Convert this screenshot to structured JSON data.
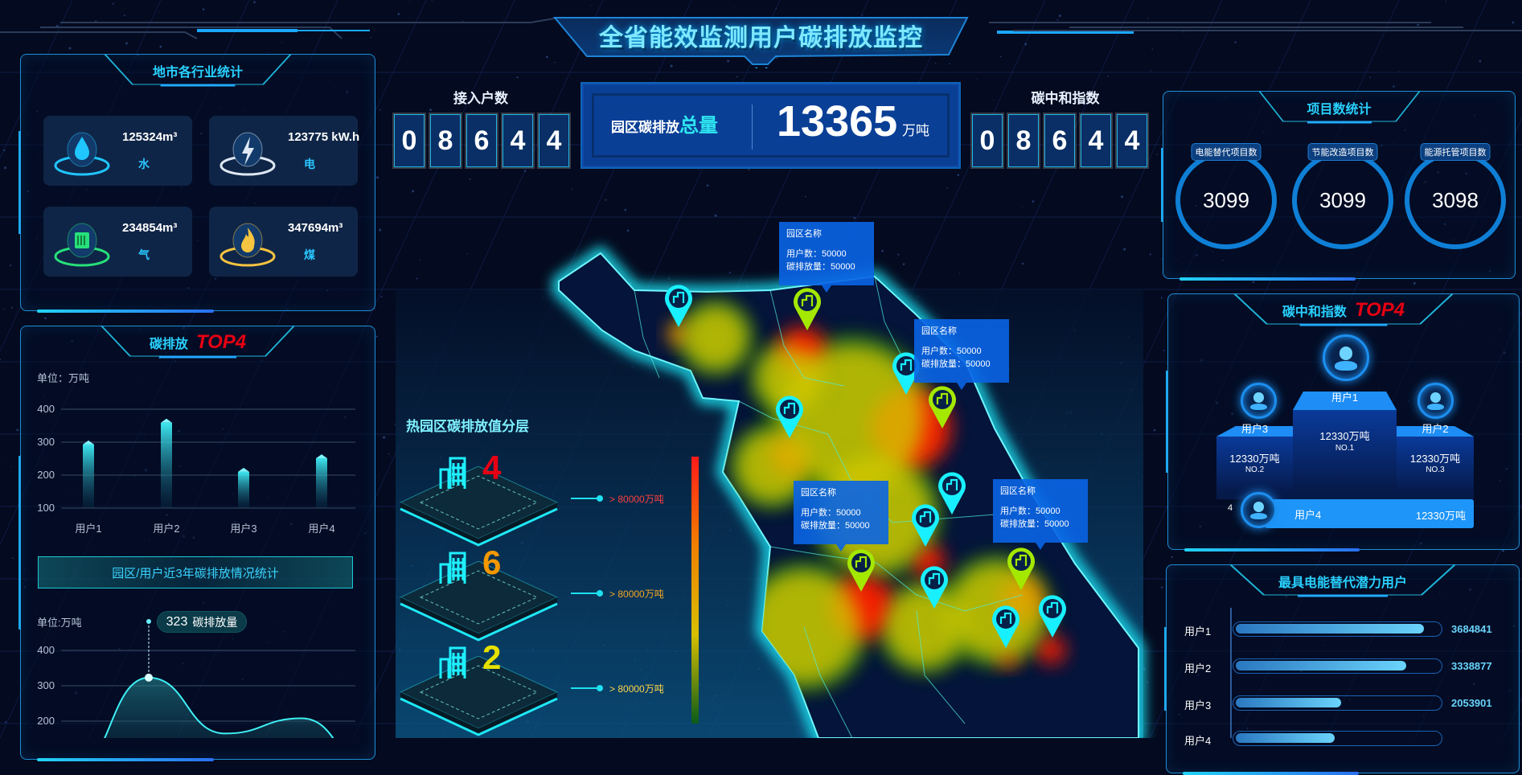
{
  "header": {
    "title": "全省能效监测用户碳排放监控"
  },
  "industry_panel": {
    "title": "地市各行业统计",
    "cards": [
      {
        "value": "125324m³",
        "label": "水",
        "icon": "water-drop-icon",
        "color": "#1fc6ff"
      },
      {
        "value": "123775 kW.h",
        "label": "电",
        "icon": "lightning-icon",
        "color": "#dfe9f5"
      },
      {
        "value": "234854m³",
        "label": "气",
        "icon": "gas-icon",
        "color": "#27e07a"
      },
      {
        "value": "347694m³",
        "label": "煤",
        "icon": "flame-icon",
        "color": "#f5c440"
      }
    ]
  },
  "carbon_top4": {
    "title": "碳排放",
    "badge": "TOP4",
    "unit": "单位：万吨",
    "chart_data": {
      "type": "bar",
      "categories": [
        "用户1",
        "用户2",
        "用户3",
        "用户4"
      ],
      "values": [
        293,
        359,
        210,
        251
      ],
      "ylim": [
        100,
        400
      ],
      "yticks": [
        100,
        200,
        300,
        400
      ],
      "ylabel": "单位：万吨",
      "grid": true
    }
  },
  "trend": {
    "banner": "园区/用户近3年碳排放情况统计",
    "unit": "单位:万吨",
    "tooltip": {
      "value": "323",
      "label": "碳排放量"
    },
    "chart_data": {
      "type": "area",
      "series": [
        {
          "name": "碳排放量",
          "values": [
            60,
            323,
            165,
            208,
            40
          ]
        }
      ],
      "yticks": [
        200,
        300,
        400
      ],
      "ylabel": "单位:万吨",
      "grid": true
    }
  },
  "access": {
    "label": "接入户数",
    "digits": [
      "0",
      "8",
      "6",
      "4",
      "4"
    ]
  },
  "total": {
    "label": "园区碳排放",
    "label_em": "总量",
    "value": "13365",
    "unit": "万吨"
  },
  "neutral_index": {
    "label": "碳中和指数",
    "digits": [
      "0",
      "8",
      "6",
      "4",
      "4"
    ]
  },
  "layers": {
    "title": "热园区碳排放值分层",
    "items": [
      {
        "count": "4",
        "text": "> 80000万吨",
        "color": "#e60012",
        "text_color": "#ff3e3e"
      },
      {
        "count": "6",
        "text": "> 80000万吨",
        "color": "#f39800",
        "text_color": "#f5a623"
      },
      {
        "count": "2",
        "text": "> 80000万吨",
        "color": "#e5e000",
        "text_color": "#ffd54a"
      }
    ],
    "scale_colors": [
      "#ff1a1a",
      "#f08000",
      "#d8c000",
      "#0a5a1a"
    ]
  },
  "map": {
    "tooltips": [
      {
        "name": "园区名称",
        "users": "用户数：50000",
        "emission": "碳排放量：50000"
      },
      {
        "name": "园区名称",
        "users": "用户数：50000",
        "emission": "碳排放量：50000"
      },
      {
        "name": "园区名称",
        "users": "用户数：50000",
        "emission": "碳排放量：50000"
      },
      {
        "name": "园区名称",
        "users": "用户数：50000",
        "emission": "碳排放量：50000"
      }
    ],
    "pin_colors": {
      "cyan": "#19f0ff",
      "green": "#a4e800"
    }
  },
  "projects": {
    "title": "项目数统计",
    "items": [
      {
        "label": "电能替代项目数",
        "value": "3099"
      },
      {
        "label": "节能改造项目数",
        "value": "3099"
      },
      {
        "label": "能源托管项目数",
        "value": "3098"
      }
    ]
  },
  "neutral_top4": {
    "title": "碳中和指数",
    "badge": "TOP4",
    "first": {
      "name": "用户1",
      "value": "12330万吨",
      "rank": "NO.1"
    },
    "second": {
      "name": "用户3",
      "value": "12330万吨",
      "rank": "NO.2"
    },
    "third": {
      "name": "用户2",
      "value": "12330万吨",
      "rank": "NO.3"
    },
    "fourth": {
      "index": "4",
      "name": "用户4",
      "value": "12330万吨"
    }
  },
  "potential": {
    "title": "最具电能替代潜力用户",
    "rows": [
      {
        "name": "用户1",
        "value": "3684841",
        "fraction": 0.93
      },
      {
        "name": "用户2",
        "value": "3338877",
        "fraction": 0.84
      },
      {
        "name": "用户3",
        "value": "2053901",
        "fraction": 0.52
      },
      {
        "name": "用户4",
        "value": "",
        "fraction": 0.49
      }
    ]
  }
}
